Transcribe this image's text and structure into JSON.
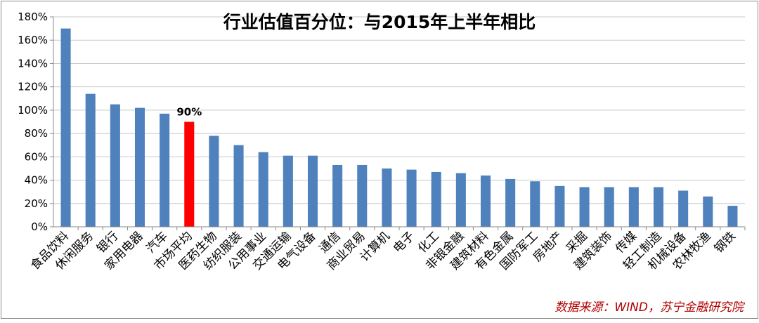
{
  "colors": {
    "bar": "#4f81bd",
    "highlight": "#ff0000",
    "grid": "#c8c8c8",
    "axis": "#888888",
    "source_note": "#c00000"
  },
  "chart_data": {
    "type": "bar",
    "title": "行业估值百分位：与2015年上半年相比",
    "xlabel": "",
    "ylabel": "",
    "ylim": [
      0,
      180
    ],
    "y_ticks": [
      "0%",
      "20%",
      "40%",
      "60%",
      "80%",
      "100%",
      "120%",
      "140%",
      "160%",
      "180%"
    ],
    "grid": true,
    "legend": "none",
    "categories": [
      "食品饮料",
      "休闲服务",
      "银行",
      "家用电器",
      "汽车",
      "市场平均",
      "医药生物",
      "纺织服装",
      "公用事业",
      "交通运输",
      "电气设备",
      "通信",
      "商业贸易",
      "计算机",
      "电子",
      "化工",
      "非银金融",
      "建筑材料",
      "有色金属",
      "国防军工",
      "房地产",
      "采掘",
      "建筑装饰",
      "传媒",
      "轻工制造",
      "机械设备",
      "农林牧渔",
      "钢铁"
    ],
    "values": [
      170,
      114,
      105,
      102,
      97,
      90,
      78,
      70,
      64,
      61,
      61,
      53,
      53,
      50,
      49,
      47,
      46,
      44,
      41,
      39,
      35,
      34,
      34,
      34,
      34,
      31,
      26,
      18
    ],
    "highlight_index": 5,
    "data_labels": [
      {
        "index": 5,
        "text": "90%"
      }
    ]
  },
  "source_note": "数据来源：WIND，苏宁金融研究院"
}
